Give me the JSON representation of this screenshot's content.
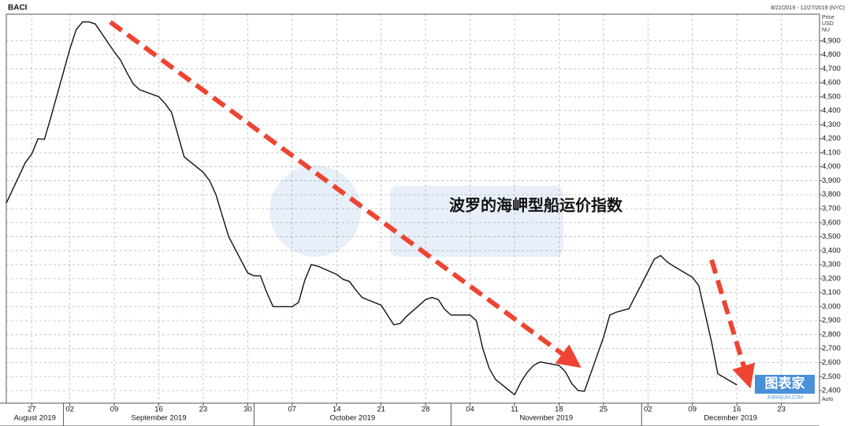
{
  "chart_data": {
    "type": "line",
    "title": "BACI",
    "date_range": "8/22/2019 - 12/27/2019 (NYC)",
    "axis_header": [
      "Price",
      "USD",
      "NU"
    ],
    "axis_footer": "Auto",
    "annotation": "波罗的海岬型船运价指数",
    "watermark": {
      "logo": "图表家",
      "site": "JUBIAOJIA.COM"
    },
    "color": "#111111",
    "grid": true,
    "xlim": [
      "2019-08-23",
      "2019-12-29"
    ],
    "ylim": [
      2310,
      5090
    ],
    "xticks": [
      {
        "value": "2019-08-27",
        "label": "27"
      },
      {
        "value": "2019-09-02",
        "label": "02"
      },
      {
        "value": "2019-09-09",
        "label": "09"
      },
      {
        "value": "2019-09-16",
        "label": "16"
      },
      {
        "value": "2019-09-23",
        "label": "23"
      },
      {
        "value": "2019-09-30",
        "label": "30"
      },
      {
        "value": "2019-10-07",
        "label": "07"
      },
      {
        "value": "2019-10-14",
        "label": "14"
      },
      {
        "value": "2019-10-21",
        "label": "21"
      },
      {
        "value": "2019-10-28",
        "label": "28"
      },
      {
        "value": "2019-11-04",
        "label": "04"
      },
      {
        "value": "2019-11-11",
        "label": "11"
      },
      {
        "value": "2019-11-18",
        "label": "18"
      },
      {
        "value": "2019-11-25",
        "label": "25"
      },
      {
        "value": "2019-12-02",
        "label": "02"
      },
      {
        "value": "2019-12-09",
        "label": "09"
      },
      {
        "value": "2019-12-16",
        "label": "16"
      },
      {
        "value": "2019-12-23",
        "label": "23"
      }
    ],
    "months": [
      {
        "value": "2019-08-01",
        "label": "August 2019"
      },
      {
        "value": "2019-09-01",
        "label": "September 2019"
      },
      {
        "value": "2019-10-01",
        "label": "October 2019"
      },
      {
        "value": "2019-11-01",
        "label": "November 2019"
      },
      {
        "value": "2019-12-01",
        "label": "December 2019"
      }
    ],
    "yticks": [
      {
        "value": 2400,
        "label": "2,400"
      },
      {
        "value": 2500,
        "label": "2,500"
      },
      {
        "value": 2600,
        "label": "2,600"
      },
      {
        "value": 2700,
        "label": "2,700"
      },
      {
        "value": 2800,
        "label": "2,800"
      },
      {
        "value": 2900,
        "label": "2,900"
      },
      {
        "value": 3000,
        "label": "3,000"
      },
      {
        "value": 3100,
        "label": "3,100"
      },
      {
        "value": 3200,
        "label": "3,200"
      },
      {
        "value": 3300,
        "label": "3,300"
      },
      {
        "value": 3400,
        "label": "3,400"
      },
      {
        "value": 3500,
        "label": "3,500"
      },
      {
        "value": 3600,
        "label": "3,600"
      },
      {
        "value": 3700,
        "label": "3,700"
      },
      {
        "value": 3800,
        "label": "3,800"
      },
      {
        "value": 3900,
        "label": "3,900"
      },
      {
        "value": 4000,
        "label": "4,000"
      },
      {
        "value": 4100,
        "label": "4,100"
      },
      {
        "value": 4200,
        "label": "4,200"
      },
      {
        "value": 4300,
        "label": "4,300"
      },
      {
        "value": 4400,
        "label": "4,400"
      },
      {
        "value": 4500,
        "label": "4,500"
      },
      {
        "value": 4600,
        "label": "4,600"
      },
      {
        "value": 4700,
        "label": "4,700"
      },
      {
        "value": 4800,
        "label": "4,800"
      },
      {
        "value": 4900,
        "label": "4,900"
      }
    ],
    "x": [
      "2019-08-23",
      "2019-08-26",
      "2019-08-27",
      "2019-08-28",
      "2019-08-29",
      "2019-08-30",
      "2019-09-02",
      "2019-09-03",
      "2019-09-04",
      "2019-09-05",
      "2019-09-06",
      "2019-09-09",
      "2019-09-10",
      "2019-09-11",
      "2019-09-12",
      "2019-09-13",
      "2019-09-16",
      "2019-09-17",
      "2019-09-18",
      "2019-09-19",
      "2019-09-20",
      "2019-09-23",
      "2019-09-24",
      "2019-09-25",
      "2019-09-26",
      "2019-09-27",
      "2019-09-30",
      "2019-10-01",
      "2019-10-02",
      "2019-10-03",
      "2019-10-04",
      "2019-10-07",
      "2019-10-08",
      "2019-10-09",
      "2019-10-10",
      "2019-10-11",
      "2019-10-14",
      "2019-10-15",
      "2019-10-16",
      "2019-10-17",
      "2019-10-18",
      "2019-10-21",
      "2019-10-22",
      "2019-10-23",
      "2019-10-24",
      "2019-10-25",
      "2019-10-28",
      "2019-10-29",
      "2019-10-30",
      "2019-10-31",
      "2019-11-01",
      "2019-11-04",
      "2019-11-05",
      "2019-11-06",
      "2019-11-07",
      "2019-11-08",
      "2019-11-11",
      "2019-11-12",
      "2019-11-13",
      "2019-11-14",
      "2019-11-15",
      "2019-11-18",
      "2019-11-19",
      "2019-11-20",
      "2019-11-21",
      "2019-11-22",
      "2019-11-25",
      "2019-11-26",
      "2019-11-27",
      "2019-11-29",
      "2019-12-02",
      "2019-12-03",
      "2019-12-04",
      "2019-12-05",
      "2019-12-06",
      "2019-12-09",
      "2019-12-10",
      "2019-12-11",
      "2019-12-12",
      "2019-12-13",
      "2019-12-16"
    ],
    "values": [
      3740,
      4030,
      4090,
      4200,
      4196,
      4350,
      4840,
      4980,
      5035,
      5035,
      5020,
      4820,
      4760,
      4670,
      4590,
      4550,
      4500,
      4450,
      4390,
      4230,
      4070,
      3960,
      3900,
      3800,
      3650,
      3500,
      3240,
      3220,
      3220,
      3100,
      3000,
      3000,
      3030,
      3190,
      3300,
      3290,
      3230,
      3195,
      3180,
      3120,
      3065,
      3010,
      2940,
      2870,
      2880,
      2930,
      3050,
      3065,
      3050,
      2980,
      2940,
      2940,
      2900,
      2700,
      2560,
      2480,
      2370,
      2460,
      2530,
      2580,
      2605,
      2580,
      2535,
      2450,
      2400,
      2395,
      2780,
      2940,
      2960,
      2985,
      3250,
      3340,
      3365,
      3320,
      3290,
      3210,
      3150,
      2950,
      2750,
      2520,
      2440
    ]
  }
}
